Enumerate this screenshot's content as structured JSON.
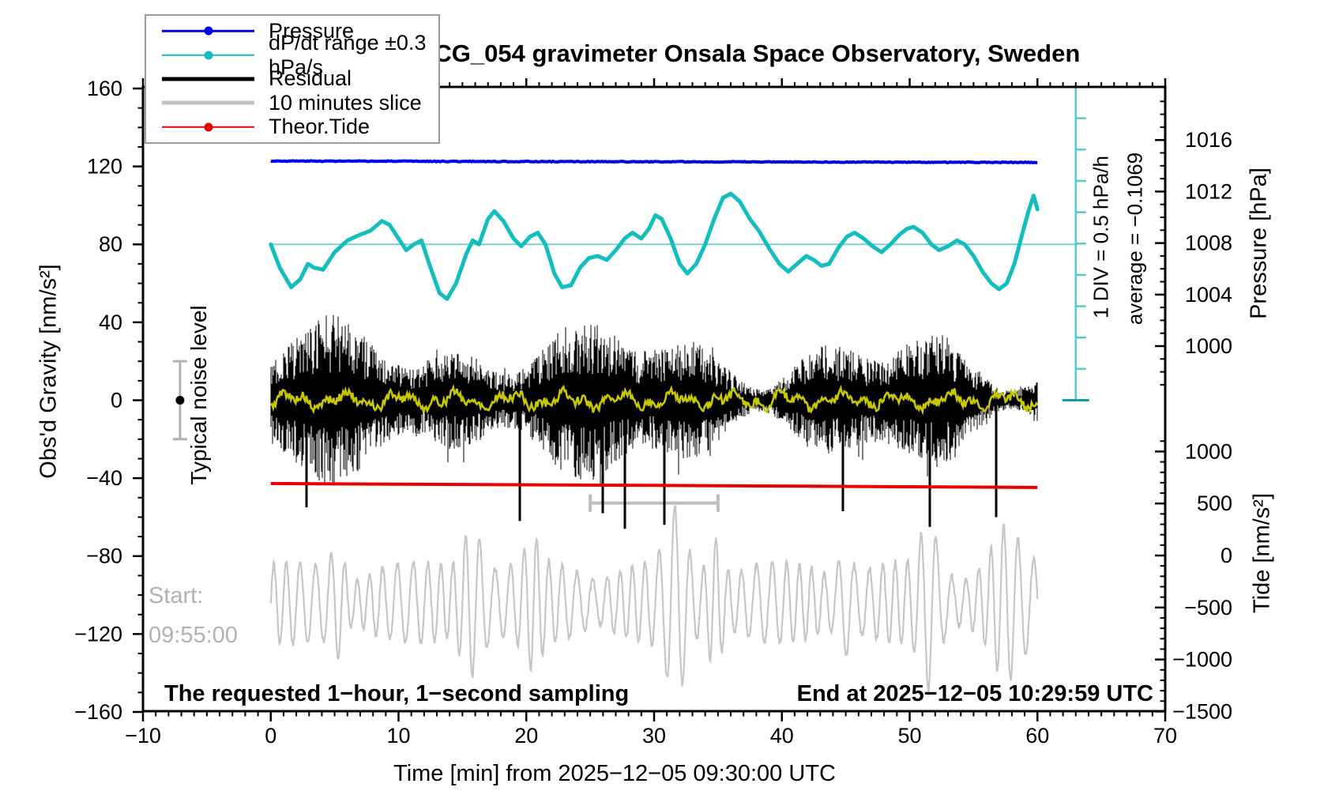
{
  "title": "SCG_054 gravimeter Onsala Space Observatory, Sweden",
  "legend": {
    "items": [
      {
        "label": "Pressure",
        "color": "#0000e6",
        "style": "thin-dot"
      },
      {
        "label": "dP/dt range ±0.3 hPa/s",
        "color": "#14bebe",
        "style": "thin-dot"
      },
      {
        "label": "Residual",
        "color": "#000000",
        "style": "thick"
      },
      {
        "label": "10 minutes slice",
        "color": "#c3c3c3",
        "style": "thick"
      },
      {
        "label": "Theor.Tide",
        "color": "#e60000",
        "style": "thin-dot"
      }
    ]
  },
  "axes": {
    "x": {
      "label": "Time [min] from 2025−12−05 09:30:00 UTC",
      "range": [
        -10,
        70
      ],
      "major_ticks": [
        -10,
        0,
        10,
        20,
        30,
        40,
        50,
        60,
        70
      ],
      "minor_step": 1
    },
    "y_left": {
      "label": "Obs'd Gravity [nm/s²]",
      "range": [
        -160,
        160
      ],
      "major_ticks": [
        160,
        120,
        80,
        40,
        0,
        -40,
        -80,
        -120,
        -160
      ],
      "minor_step": 10
    },
    "y_right_pressure": {
      "label": "Pressure [hPa]",
      "major_ticks": [
        1016,
        1012,
        1008,
        1004,
        1000
      ],
      "minor_step": 1,
      "minor_range": [
        997,
        1019
      ]
    },
    "y_right_tide": {
      "label": "Tide [nm/s²]",
      "major_ticks": [
        1000,
        500,
        0,
        -500,
        -1000,
        -1500
      ],
      "minor_step": 100,
      "minor_range": [
        -1500,
        1100
      ]
    }
  },
  "annotations": {
    "div_scale": "1 DIV = 0.5 hPa/h",
    "average": "average = −0.1069",
    "noise_label": "Typical noise level",
    "start_line1": "Start:",
    "start_line2": "09:55:00",
    "bottom_left": "The requested 1−hour, 1−second sampling",
    "bottom_right": "End at 2025−12−05 10:29:59 UTC"
  },
  "chart_data": {
    "type": "line",
    "title": "SCG_054 gravimeter Onsala Space Observatory, Sweden",
    "xlabel": "Time [min] from 2025−12−05 09:30:00 UTC",
    "x_range_min": [
      -10,
      70
    ],
    "gravity_range": [
      -160,
      160
    ],
    "noise_marker": {
      "x_min": -7.1,
      "center_gravity": 0,
      "half_range_gravity": 20,
      "bar_color": "#b0b0b0",
      "dot_color": "#000000"
    },
    "dpdt_scale_bar": {
      "x_min": 63,
      "from_gravity": 160,
      "to_gravity": 0,
      "divisions": 10,
      "div_value": "0.5 hPa/h",
      "color": "#59c8c8",
      "cap_color": "#0d9e9e"
    },
    "dpdt_zero_line": {
      "gravity": 80,
      "x_from_min": 0,
      "x_to_min": 63,
      "color": "#7fd0d0"
    },
    "slice_indicator": {
      "x_from_min": 25,
      "x_to_min": 35,
      "gravity": -52.8,
      "color": "#bdbdbd"
    },
    "series": [
      {
        "name": "Pressure",
        "axis": "pressure",
        "color": "#0000e6",
        "width": 4,
        "points": [
          [
            0,
            1014.37
          ],
          [
            10,
            1014.35
          ],
          [
            20,
            1014.33
          ],
          [
            30,
            1014.31
          ],
          [
            40,
            1014.3
          ],
          [
            50,
            1014.28
          ],
          [
            60,
            1014.26
          ]
        ],
        "jitter_hpa": 0.06
      },
      {
        "name": "dP/dt",
        "axis": "gravity",
        "color": "#14bebe",
        "width": 5,
        "note": "zero at gravity 80; 1 DIV = 15.9 nm/s² = 0.5 hPa/h",
        "points": [
          [
            0,
            80
          ],
          [
            0.7,
            68
          ],
          [
            1.6,
            58
          ],
          [
            2.3,
            62
          ],
          [
            2.9,
            70
          ],
          [
            3.4,
            68
          ],
          [
            4.1,
            67
          ],
          [
            5,
            76
          ],
          [
            6,
            82
          ],
          [
            7,
            85
          ],
          [
            7.8,
            87
          ],
          [
            8.7,
            92
          ],
          [
            9.3,
            90
          ],
          [
            10,
            83
          ],
          [
            10.6,
            77
          ],
          [
            11.2,
            80
          ],
          [
            11.8,
            82
          ],
          [
            12.4,
            70
          ],
          [
            13.2,
            55
          ],
          [
            13.8,
            52
          ],
          [
            14.5,
            60
          ],
          [
            15.3,
            75
          ],
          [
            15.8,
            82
          ],
          [
            16.3,
            80
          ],
          [
            17,
            93
          ],
          [
            17.5,
            97
          ],
          [
            18.2,
            92
          ],
          [
            19,
            83
          ],
          [
            19.6,
            79
          ],
          [
            20.3,
            84
          ],
          [
            20.9,
            86
          ],
          [
            21.5,
            80
          ],
          [
            22.2,
            65
          ],
          [
            22.8,
            58
          ],
          [
            23.5,
            59
          ],
          [
            24.2,
            68
          ],
          [
            24.9,
            73
          ],
          [
            25.6,
            74
          ],
          [
            26.3,
            72
          ],
          [
            27,
            77
          ],
          [
            27.7,
            83
          ],
          [
            28.3,
            86
          ],
          [
            29,
            83
          ],
          [
            29.6,
            88
          ],
          [
            30.1,
            95
          ],
          [
            30.6,
            93
          ],
          [
            31.3,
            83
          ],
          [
            32,
            70
          ],
          [
            32.6,
            65
          ],
          [
            33.3,
            70
          ],
          [
            34,
            80
          ],
          [
            34.7,
            93
          ],
          [
            35.4,
            104
          ],
          [
            36,
            106
          ],
          [
            36.7,
            102
          ],
          [
            37.5,
            93
          ],
          [
            38.2,
            87
          ],
          [
            39,
            78
          ],
          [
            39.8,
            70
          ],
          [
            40.5,
            66
          ],
          [
            41.2,
            70
          ],
          [
            41.9,
            74
          ],
          [
            42.5,
            72
          ],
          [
            43.1,
            69
          ],
          [
            43.7,
            70
          ],
          [
            44.4,
            78
          ],
          [
            45.1,
            84
          ],
          [
            45.7,
            86
          ],
          [
            46.4,
            83
          ],
          [
            47.1,
            79
          ],
          [
            47.8,
            76
          ],
          [
            48.5,
            80
          ],
          [
            49.2,
            85
          ],
          [
            49.8,
            88
          ],
          [
            50.3,
            89
          ],
          [
            51,
            86
          ],
          [
            51.7,
            80
          ],
          [
            52.3,
            77
          ],
          [
            53,
            79
          ],
          [
            53.7,
            82
          ],
          [
            54.3,
            80
          ],
          [
            55,
            74
          ],
          [
            55.7,
            66
          ],
          [
            56.4,
            60
          ],
          [
            57,
            57
          ],
          [
            57.6,
            60
          ],
          [
            58.2,
            70
          ],
          [
            58.8,
            85
          ],
          [
            59.3,
            97
          ],
          [
            59.7,
            105
          ],
          [
            60,
            98
          ]
        ]
      },
      {
        "name": "Residual",
        "axis": "gravity",
        "color": "#000000",
        "width": 1,
        "synth": {
          "kind": "broadband-noise",
          "baseline": 0,
          "typical_amp": 35,
          "down_spikes_min": [
            2.8,
            19.5,
            26,
            27.7,
            30.8,
            44.8,
            51.6,
            56.8
          ],
          "down_spike_depth": [
            -55,
            -62,
            -58,
            -66,
            -64,
            -57,
            -65,
            -60
          ],
          "max_up": 56
        }
      },
      {
        "name": "Residual smoothed",
        "axis": "gravity",
        "color": "#c8c800",
        "width": 2.6,
        "synth": {
          "kind": "small-jitter",
          "baseline": 0,
          "amp": 4.5
        }
      },
      {
        "name": "Theor.Tide",
        "axis": "tide",
        "color": "#e60000",
        "width": 4,
        "points": [
          [
            0,
            692
          ],
          [
            10,
            686
          ],
          [
            20,
            680
          ],
          [
            30,
            674
          ],
          [
            40,
            668
          ],
          [
            50,
            661
          ],
          [
            60,
            654
          ]
        ]
      },
      {
        "name": "10 minutes slice",
        "axis": "gravity",
        "color": "#c6c6c6",
        "width": 2.2,
        "synth": {
          "kind": "seismic-wave",
          "center": -104,
          "base_amp": 11,
          "period_min": 1.08,
          "bursts": [
            [
              5.2,
              0.5,
              14
            ],
            [
              15.8,
              0.8,
              26
            ],
            [
              20.5,
              0.6,
              14
            ],
            [
              31.7,
              0.7,
              30
            ],
            [
              34.8,
              0.5,
              22
            ],
            [
              44.9,
              0.5,
              16
            ],
            [
              51.5,
              0.6,
              26
            ],
            [
              57.5,
              1.0,
              20
            ]
          ]
        }
      }
    ]
  }
}
